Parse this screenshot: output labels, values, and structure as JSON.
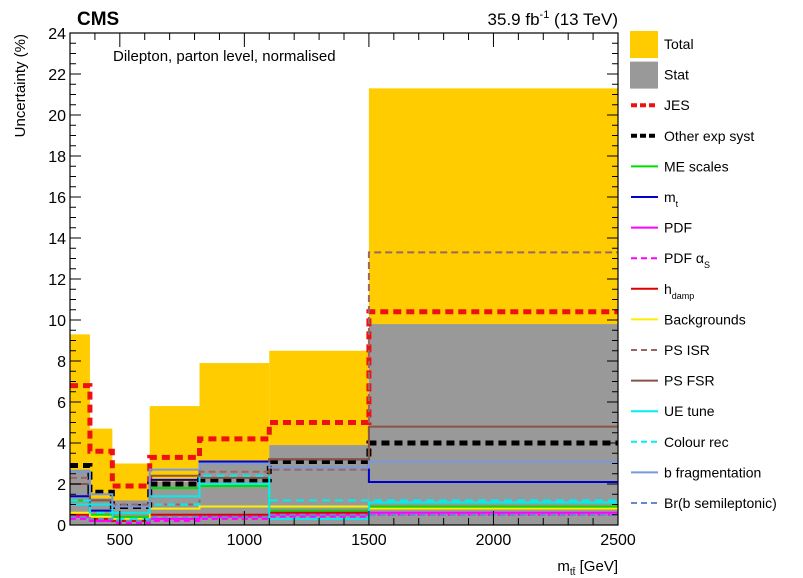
{
  "header": {
    "experiment": "CMS",
    "lumi": "35.9 fb",
    "lumi_exp": "-1",
    "energy": " (13 TeV)"
  },
  "chart_data": {
    "type": "step-histogram",
    "annotation": "Dilepton, parton level, normalised",
    "xlabel_main": "m",
    "xlabel_sub": "tt̄",
    "xlabel_unit": " [GeV]",
    "ylabel": "Uncertainty (%)",
    "xlim": [
      300,
      2500
    ],
    "ylim": [
      0,
      24
    ],
    "x_ticks": [
      500,
      1000,
      1500,
      2000,
      2500
    ],
    "x_tick_labels": [
      "500",
      "1000",
      "1500",
      "2000",
      "2500"
    ],
    "y_ticks": [
      0,
      2,
      4,
      6,
      8,
      10,
      12,
      14,
      16,
      18,
      20,
      22,
      24
    ],
    "y_tick_labels": [
      "0",
      "2",
      "4",
      "6",
      "8",
      "10",
      "12",
      "14",
      "16",
      "18",
      "20",
      "22",
      "24"
    ],
    "bin_edges": [
      300,
      380,
      470,
      620,
      820,
      1100,
      1500,
      2500
    ],
    "series": [
      {
        "name": "Total",
        "kind": "fill",
        "color": "#ffcc00",
        "values": [
          9.3,
          4.7,
          3.0,
          5.8,
          7.9,
          8.5,
          21.3
        ]
      },
      {
        "name": "Stat",
        "kind": "fill",
        "color": "#999999",
        "values": [
          2.7,
          1.3,
          1.2,
          2.1,
          3.1,
          3.9,
          9.8
        ]
      },
      {
        "name": "JES",
        "kind": "line",
        "color": "#ee1111",
        "dash": "8,5",
        "width": 5,
        "values": [
          6.8,
          3.6,
          1.9,
          3.3,
          4.2,
          5.0,
          10.4
        ]
      },
      {
        "name": "Other exp syst",
        "kind": "line",
        "color": "#000000",
        "dash": "8,5",
        "width": 5,
        "values": [
          2.9,
          1.6,
          0.9,
          2.0,
          2.2,
          3.1,
          4.0
        ]
      },
      {
        "name": "ME scales",
        "kind": "line",
        "color": "#00dd00",
        "width": 2,
        "values": [
          1.2,
          0.5,
          0.4,
          1.8,
          1.9,
          0.7,
          0.9
        ]
      },
      {
        "name": "m",
        "sub": "t",
        "kind": "line",
        "color": "#0000cc",
        "width": 2,
        "values": [
          1.4,
          0.7,
          0.3,
          2.2,
          3.1,
          3.2,
          2.1
        ]
      },
      {
        "name": "PDF",
        "kind": "line",
        "color": "#ff00ff",
        "width": 2,
        "values": [
          0.4,
          0.2,
          0.2,
          0.3,
          0.4,
          0.5,
          0.6
        ]
      },
      {
        "name": "PDF α",
        "sub": "S",
        "kind": "line",
        "color": "#ff00ff",
        "dash": "6,4",
        "width": 2,
        "values": [
          0.3,
          0.2,
          0.1,
          0.2,
          0.3,
          0.4,
          0.5
        ]
      },
      {
        "name": "h",
        "sub": "damp",
        "kind": "line",
        "color": "#dd0000",
        "width": 2,
        "values": [
          0.5,
          0.3,
          0.2,
          0.5,
          0.5,
          0.6,
          0.8
        ]
      },
      {
        "name": "Backgrounds",
        "kind": "line",
        "color": "#ffee00",
        "width": 2,
        "values": [
          0.6,
          0.4,
          0.3,
          0.8,
          0.9,
          0.9,
          0.8
        ]
      },
      {
        "name": "PS ISR",
        "kind": "line",
        "color": "#996666",
        "dash": "7,4",
        "width": 2,
        "values": [
          2.3,
          1.0,
          1.0,
          1.0,
          2.6,
          2.7,
          13.3
        ]
      },
      {
        "name": "PS FSR",
        "kind": "line",
        "color": "#885544",
        "width": 2,
        "values": [
          2.0,
          1.2,
          0.9,
          2.4,
          2.3,
          3.2,
          4.8
        ]
      },
      {
        "name": "UE tune",
        "kind": "line",
        "color": "#00eeee",
        "width": 2,
        "values": [
          1.0,
          1.0,
          0.6,
          1.4,
          2.0,
          0.3,
          1.1
        ]
      },
      {
        "name": "Colour rec",
        "kind": "line",
        "color": "#00eeee",
        "dash": "8,5",
        "width": 2,
        "values": [
          1.2,
          0.6,
          0.3,
          1.0,
          2.4,
          1.2,
          1.2
        ]
      },
      {
        "name": "b fragmentation",
        "kind": "line",
        "color": "#7799dd",
        "width": 2,
        "values": [
          2.6,
          1.5,
          0.9,
          2.7,
          3.0,
          2.8,
          3.1
        ]
      },
      {
        "name": "Br(b semileptonic)",
        "kind": "line",
        "color": "#6688cc",
        "dash": "6,4",
        "width": 2,
        "values": [
          0.4,
          0.3,
          0.2,
          0.4,
          0.4,
          0.5,
          0.5
        ]
      }
    ],
    "legend_position": "right"
  }
}
